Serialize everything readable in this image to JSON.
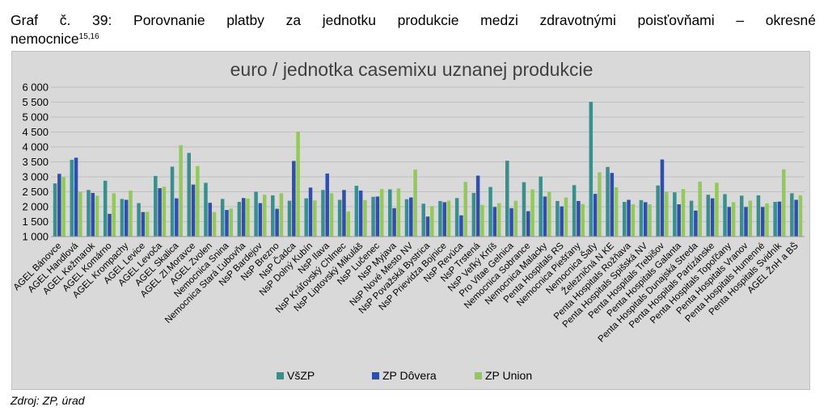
{
  "heading": {
    "line1": "Graf č. 39: Porovnanie platby za jednotku produkcie medzi zdravotnými poisťovňami – okresné",
    "line2": "nemocnice",
    "sup": "15,16"
  },
  "source": "Zdroj: ZP, úrad",
  "colors": {
    "vszp": "#3a8f8c",
    "dovera": "#2f4fb0",
    "union": "#92c95a"
  },
  "chart_data": {
    "type": "bar",
    "title": "euro / jednotka casemixu uznanej produkcie",
    "ylim": [
      1000,
      6000
    ],
    "yticks": [
      {
        "v": 1000,
        "label": "1 000"
      },
      {
        "v": 1500,
        "label": "1 500"
      },
      {
        "v": 2000,
        "label": "2 000"
      },
      {
        "v": 2500,
        "label": "2 500"
      },
      {
        "v": 3000,
        "label": "3 000"
      },
      {
        "v": 3500,
        "label": "3 500"
      },
      {
        "v": 4000,
        "label": "4 000"
      },
      {
        "v": 4500,
        "label": "4 500"
      },
      {
        "v": 5000,
        "label": "5 000"
      },
      {
        "v": 5500,
        "label": "5 500"
      },
      {
        "v": 6000,
        "label": "6 000"
      }
    ],
    "grid": true,
    "legend_position": "bottom",
    "categories": [
      "AGEL Bánovce",
      "AGEL Handlová",
      "AGEL Kežmarok",
      "AGEL Komárno",
      "AGEL Krompachy",
      "AGEL Levice",
      "AGEL Levoča",
      "AGEL Skalica",
      "AGEL Zl.Moravce",
      "AGEL Zvolen",
      "Nemocnica Snina",
      "Nemocnica Stará Ľubovňa",
      "NsP Bardejov",
      "NsP Brezno",
      "NsP Čadca",
      "NsP Dolný Kubín",
      "NsP Ilava",
      "NsP Kráľovský Chlmec",
      "NsP Liptovský Mikuláš",
      "NsP Lučenec",
      "NsP Myjava",
      "NsP Nové Mesto NV",
      "NsP Považská Bystrica",
      "NsP Prievidza Bojnice",
      "NsP Revúca",
      "NsP Trstená",
      "NsP Veľký Krtíš",
      "Pro Vitae Gelnica",
      "Nemocnica Sobrance",
      "Nemocnica Malacky",
      "Penta Hospitals RS",
      "Nemocnica Piešťany",
      "Nemocnica Šaľy",
      "Železničná N KE",
      "Penta Hospitals Rožňava",
      "Penta Hospitals Spišská NV",
      "Penta Hospitals Trebišov",
      "Penta Hospitals Galanta",
      "Penta Hospitals Dunajská Streda",
      "Penta Hospitals Partizánske",
      "Penta Hospitals Topoľčany",
      "Penta Hospitals Vranov",
      "Penta Hospitals Humenné",
      "Penta Hospitals Svidník",
      "AGEL ŽnH a BŠ"
    ],
    "series": [
      {
        "key": "vszp",
        "name": "VšZP",
        "values": [
          2780,
          3570,
          2560,
          2870,
          2260,
          2120,
          3030,
          3340,
          3800,
          2800,
          2260,
          2160,
          2500,
          2380,
          2200,
          2280,
          2560,
          2230,
          2700,
          2330,
          2580,
          2250,
          2100,
          2190,
          2290,
          2460,
          2660,
          3540,
          2820,
          3010,
          2190,
          2720,
          5510,
          3330,
          2160,
          2220,
          2710,
          2480,
          2200,
          2400,
          2420,
          2370,
          2380,
          2160,
          2450
        ]
      },
      {
        "key": "dovera",
        "name": "ZP Dôvera",
        "values": [
          3100,
          3640,
          2460,
          1760,
          2230,
          1820,
          2620,
          2280,
          2740,
          2130,
          1890,
          2290,
          2120,
          1930,
          3530,
          2640,
          3110,
          2560,
          2540,
          2340,
          1950,
          2310,
          1670,
          2150,
          1710,
          3040,
          1990,
          1950,
          1850,
          2340,
          2010,
          2190,
          2430,
          3130,
          2230,
          2150,
          3580,
          2080,
          1870,
          2280,
          1990,
          1990,
          1990,
          2170,
          2230
        ]
      },
      {
        "key": "union",
        "name": "ZP Union",
        "values": [
          2990,
          2500,
          2370,
          2450,
          2540,
          1830,
          2670,
          4060,
          3360,
          1820,
          1940,
          2270,
          2400,
          2450,
          4510,
          2210,
          2450,
          1840,
          2220,
          2590,
          2610,
          3240,
          2020,
          2200,
          2830,
          2060,
          2120,
          2200,
          2580,
          2490,
          2310,
          2090,
          3150,
          2650,
          2080,
          2080,
          2500,
          2590,
          2840,
          2800,
          2150,
          2200,
          2110,
          3250,
          2380
        ]
      }
    ]
  }
}
